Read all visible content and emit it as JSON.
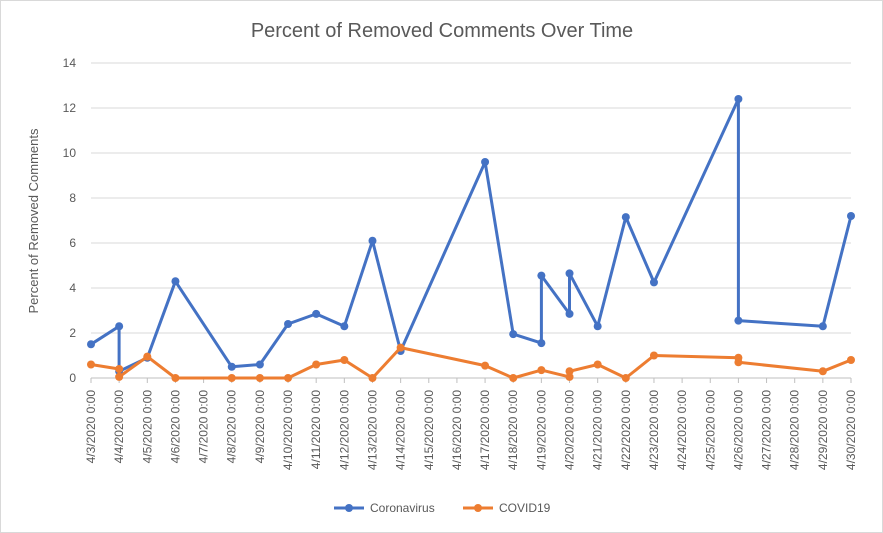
{
  "chart_data": {
    "type": "line",
    "title": "Percent of Removed Comments Over Time",
    "xlabel": "",
    "ylabel": "Percent of Removed Comments",
    "ylim": [
      0,
      14
    ],
    "yticks": [
      0,
      2,
      4,
      6,
      8,
      10,
      12,
      14
    ],
    "xlim": [
      "4/3/2020",
      "4/30/2020"
    ],
    "x_tick_labels": [
      "4/3/2020 0:00",
      "4/4/2020 0:00",
      "4/5/2020 0:00",
      "4/6/2020 0:00",
      "4/7/2020 0:00",
      "4/8/2020 0:00",
      "4/9/2020 0:00",
      "4/10/2020 0:00",
      "4/11/2020 0:00",
      "4/12/2020 0:00",
      "4/13/2020 0:00",
      "4/14/2020 0:00",
      "4/15/2020 0:00",
      "4/16/2020 0:00",
      "4/17/2020 0:00",
      "4/18/2020 0:00",
      "4/19/2020 0:00",
      "4/20/2020 0:00",
      "4/21/2020 0:00",
      "4/22/2020 0:00",
      "4/23/2020 0:00",
      "4/24/2020 0:00",
      "4/25/2020 0:00",
      "4/26/2020 0:00",
      "4/27/2020 0:00",
      "4/28/2020 0:00",
      "4/29/2020 0:00",
      "4/30/2020 0:00"
    ],
    "grid": true,
    "legend_position": "bottom",
    "series": [
      {
        "name": "Coronavirus",
        "color": "#4472c4",
        "points": [
          {
            "x": "4/3/2020 0:00",
            "y": 1.5
          },
          {
            "x": "4/4/2020 0:00",
            "y": 2.3
          },
          {
            "x": "4/4/2020 0:00",
            "y": 0.3
          },
          {
            "x": "4/5/2020 0:00",
            "y": 0.9
          },
          {
            "x": "4/6/2020 0:00",
            "y": 4.3
          },
          {
            "x": "4/8/2020 0:00",
            "y": 0.5
          },
          {
            "x": "4/9/2020 0:00",
            "y": 0.6
          },
          {
            "x": "4/10/2020 0:00",
            "y": 2.4
          },
          {
            "x": "4/11/2020 0:00",
            "y": 2.85
          },
          {
            "x": "4/12/2020 0:00",
            "y": 2.3
          },
          {
            "x": "4/13/2020 0:00",
            "y": 6.1
          },
          {
            "x": "4/14/2020 0:00",
            "y": 1.2
          },
          {
            "x": "4/17/2020 0:00",
            "y": 9.6
          },
          {
            "x": "4/18/2020 0:00",
            "y": 1.95
          },
          {
            "x": "4/19/2020 0:00",
            "y": 1.55
          },
          {
            "x": "4/19/2020 0:00",
            "y": 4.55
          },
          {
            "x": "4/20/2020 0:00",
            "y": 2.85
          },
          {
            "x": "4/20/2020 0:00",
            "y": 4.65
          },
          {
            "x": "4/21/2020 0:00",
            "y": 2.3
          },
          {
            "x": "4/22/2020 0:00",
            "y": 7.15
          },
          {
            "x": "4/23/2020 0:00",
            "y": 4.25
          },
          {
            "x": "4/26/2020 0:00",
            "y": 12.4
          },
          {
            "x": "4/26/2020 0:00",
            "y": 2.55
          },
          {
            "x": "4/29/2020 0:00",
            "y": 2.3
          },
          {
            "x": "4/30/2020 0:00",
            "y": 7.2
          }
        ]
      },
      {
        "name": "COVID19",
        "color": "#ed7d31",
        "points": [
          {
            "x": "4/3/2020 0:00",
            "y": 0.6
          },
          {
            "x": "4/4/2020 0:00",
            "y": 0.4
          },
          {
            "x": "4/4/2020 0:00",
            "y": 0.05
          },
          {
            "x": "4/5/2020 0:00",
            "y": 0.95
          },
          {
            "x": "4/6/2020 0:00",
            "y": 0.0
          },
          {
            "x": "4/8/2020 0:00",
            "y": 0.0
          },
          {
            "x": "4/9/2020 0:00",
            "y": 0.0
          },
          {
            "x": "4/10/2020 0:00",
            "y": 0.0
          },
          {
            "x": "4/11/2020 0:00",
            "y": 0.6
          },
          {
            "x": "4/12/2020 0:00",
            "y": 0.8
          },
          {
            "x": "4/13/2020 0:00",
            "y": 0.0
          },
          {
            "x": "4/14/2020 0:00",
            "y": 1.35
          },
          {
            "x": "4/17/2020 0:00",
            "y": 0.55
          },
          {
            "x": "4/18/2020 0:00",
            "y": 0.0
          },
          {
            "x": "4/19/2020 0:00",
            "y": 0.35
          },
          {
            "x": "4/20/2020 0:00",
            "y": 0.05
          },
          {
            "x": "4/20/2020 0:00",
            "y": 0.3
          },
          {
            "x": "4/21/2020 0:00",
            "y": 0.6
          },
          {
            "x": "4/22/2020 0:00",
            "y": 0.0
          },
          {
            "x": "4/23/2020 0:00",
            "y": 1.0
          },
          {
            "x": "4/26/2020 0:00",
            "y": 0.9
          },
          {
            "x": "4/26/2020 0:00",
            "y": 0.7
          },
          {
            "x": "4/29/2020 0:00",
            "y": 0.3
          },
          {
            "x": "4/30/2020 0:00",
            "y": 0.8
          }
        ]
      }
    ]
  }
}
